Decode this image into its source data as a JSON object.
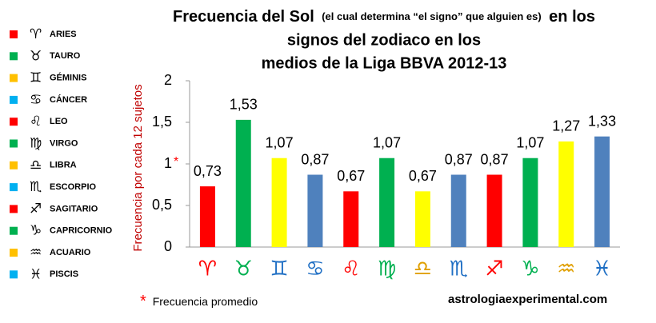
{
  "chart_data": {
    "type": "bar",
    "title_line1": [
      "Frecuencia del Sol",
      "(el cual determina “el signo” que alguien es)",
      "en los"
    ],
    "title_line2": "signos del zodiaco en los",
    "title_line3": "medios de la Liga BBVA 2012-13",
    "ylabel": "Frecuencia por cada 12 sujetos",
    "categories": [
      "♈",
      "♉",
      "♊",
      "♋",
      "♌",
      "♍",
      "♎",
      "♏",
      "♐",
      "♑",
      "♒",
      "♓"
    ],
    "symbol_colors": [
      "#ff0000",
      "#00b050",
      "#1f6fc4",
      "#1f6fc4",
      "#ff0000",
      "#00b050",
      "#e0a000",
      "#1f6fc4",
      "#ff0000",
      "#00b050",
      "#e0a000",
      "#1f6fc4"
    ],
    "values": [
      0.73,
      1.53,
      1.07,
      0.87,
      0.67,
      1.07,
      0.67,
      0.87,
      0.87,
      1.07,
      1.27,
      1.33
    ],
    "value_labels": [
      "0,73",
      "1,53",
      "1,07",
      "0,87",
      "0,67",
      "1,07",
      "0,67",
      "0,87",
      "0,87",
      "1,07",
      "1,27",
      "1,33"
    ],
    "colors": [
      "#ff0000",
      "#00b050",
      "#ffff00",
      "#4f81bd",
      "#ff0000",
      "#00b050",
      "#ffff00",
      "#4f81bd",
      "#ff0000",
      "#00b050",
      "#ffff00",
      "#4f81bd"
    ],
    "ylim": [
      0,
      2
    ],
    "yticks": [
      0,
      {
        "value": 0.5,
        "label": "0,5"
      },
      1,
      {
        "value": 1.5,
        "label": "1,5"
      },
      2
    ],
    "average_marker": "*",
    "note": {
      "marker": "*",
      "text": "Frecuencia promedio"
    },
    "source": "astrologiaexperimental.com",
    "legend": [
      {
        "symbol": "♈",
        "name": "ARIES",
        "color": "#ff0000"
      },
      {
        "symbol": "♉",
        "name": "TAURO",
        "color": "#00b050"
      },
      {
        "symbol": "♊",
        "name": "GÉMINIS",
        "color": "#ffc000"
      },
      {
        "symbol": "♋",
        "name": "CÁNCER",
        "color": "#00b0f0"
      },
      {
        "symbol": "♌",
        "name": "LEO",
        "color": "#ff0000"
      },
      {
        "symbol": "♍",
        "name": "VIRGO",
        "color": "#00b050"
      },
      {
        "symbol": "♎",
        "name": "LIBRA",
        "color": "#ffc000"
      },
      {
        "symbol": "♏",
        "name": "ESCORPIO",
        "color": "#00b0f0"
      },
      {
        "symbol": "♐",
        "name": "SAGITARIO",
        "color": "#ff0000"
      },
      {
        "symbol": "♑",
        "name": "CAPRICORNIO",
        "color": "#00b050"
      },
      {
        "symbol": "♒",
        "name": "ACUARIO",
        "color": "#ffc000"
      },
      {
        "symbol": "♓",
        "name": "PISCIS",
        "color": "#00b0f0"
      }
    ]
  }
}
